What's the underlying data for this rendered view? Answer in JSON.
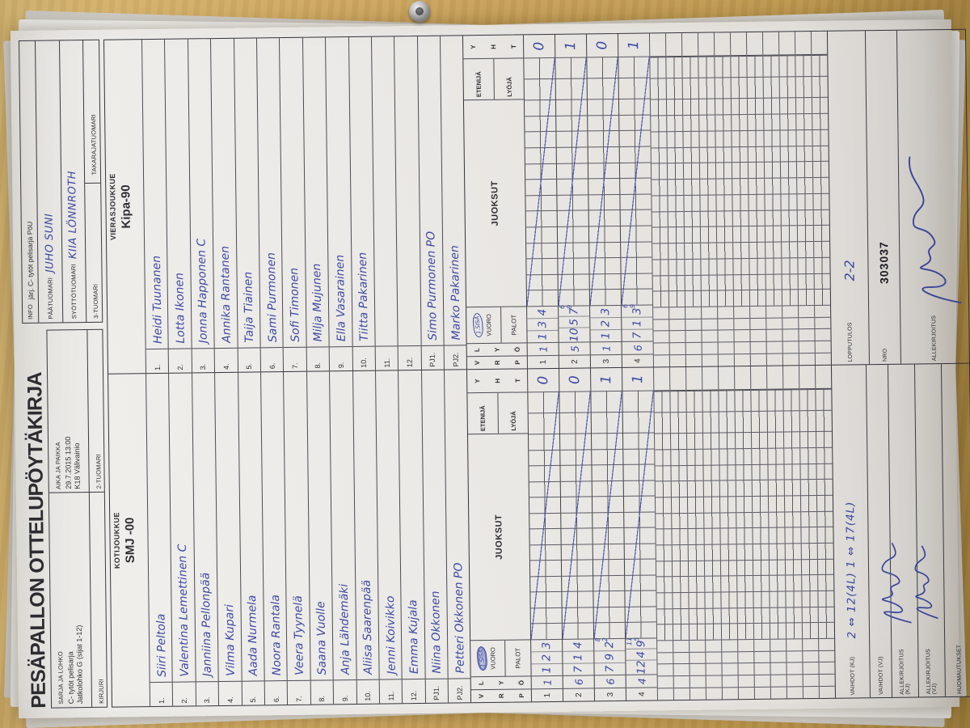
{
  "photo": {
    "wood_color": "#c09a52",
    "paper_color": "#ebe9e5",
    "ink_color": "#3c4aa5"
  },
  "header": {
    "title": "PESÄPALLON OTTELUPÖYTÄKIRJA",
    "sarja_label": "SARJA JA LOHKO",
    "sarja_line1": "C- tytöt pelisarja",
    "sarja_line2": "Jatkolohko  G (sijat 1-12)",
    "aika_label": "AIKA JA PAIKKA",
    "aika_line1": "29.7.2015 13:00",
    "aika_line2": "K18 Välivainio",
    "kirjuri_label": "KIRJURI",
    "tuomari2_label": "2-TUOMARI",
    "info_label": "INFO",
    "info_text": "järj. C- tytöt pelisarja  PöU",
    "paatuomari_label": "PÄÄTUOMARI",
    "paatuomari_value": "JUHO SUNI",
    "syottotuomari_label": "SYÖTTÖTUOMARI",
    "syottotuomari_value": "KIIA LÖNNROTH",
    "tuomari3_label": "3-TUOMARI",
    "takaraja_label": "TAKARAJATUOMARI"
  },
  "scoring_header": {
    "c1": [
      "V",
      "R",
      "P"
    ],
    "c2": [
      "L",
      "Y",
      "Ö"
    ],
    "sisa": "1.SISÄ",
    "vuoro": "VUORO",
    "palot": "PALOT",
    "juoksut": "JUOKSUT",
    "etenija": "ETENIJÄ",
    "lyoja": "LYÖJÄ",
    "yht": [
      "Y",
      "H",
      "T"
    ]
  },
  "grid": {
    "cols": 13,
    "wide_cols": 2,
    "empty_rows": 11
  },
  "home": {
    "panel_label": "KOTIJOUKKUE",
    "team_name": "SMJ -00",
    "players": [
      {
        "num": "1.",
        "name": "Siiri  Peltola"
      },
      {
        "num": "2.",
        "name": "Valentina  Lemettinen   C"
      },
      {
        "num": "3.",
        "name": "Janniina  Pellonpää"
      },
      {
        "num": "4.",
        "name": "Vilma  Kupari"
      },
      {
        "num": "5.",
        "name": "Aada  Nurmela"
      },
      {
        "num": "6.",
        "name": "Noora  Rantala"
      },
      {
        "num": "7.",
        "name": "Veera  Tyynelä"
      },
      {
        "num": "8.",
        "name": "Saana  Vuolle"
      },
      {
        "num": "9.",
        "name": "Anja  Lähdemäki"
      },
      {
        "num": "10.",
        "name": "Aliisa  Saarenpää"
      },
      {
        "num": "11.",
        "name": "Jenni  Koivikko"
      },
      {
        "num": "12.",
        "name": "Emma  Kujala"
      },
      {
        "num": "PJ1.",
        "name": "Niina Okkonen"
      },
      {
        "num": "PJ2.",
        "name": "Petteri  Okkonen   PO"
      }
    ],
    "scoring_rows": [
      {
        "v": "1",
        "lyo": "1",
        "palot": [
          "1",
          "2",
          "3"
        ],
        "yht": "0",
        "slash": true
      },
      {
        "v": "2",
        "lyo": "6",
        "palot": [
          "7",
          "1",
          "4"
        ],
        "yht": "0",
        "slash": true
      },
      {
        "v": "3",
        "lyo": "6",
        "palot": [
          "7",
          "9",
          "2"
        ],
        "extra": [
          "8",
          "2"
        ],
        "yht": "1",
        "slash": true
      },
      {
        "v": "4",
        "lyo": "4",
        "palot": [
          "12",
          "4",
          "9"
        ],
        "extra": [
          "11",
          "5"
        ],
        "yht": "1",
        "slash": true
      }
    ],
    "vaihdot_kj_label": "VAIHDOT (KJ)",
    "vaihdot_kj_value": "2 ⇔ 12(4L)   1 ⇔ 17(4L)",
    "vaihdot_vj_label": "VAIHDOT (VJ)",
    "allekirjoitus_kj_label": "ALLEKIRJOITUS (KJ)",
    "allekirjoitus_vj_label": "ALLEKIRJOITUS (VJ)",
    "huomautukset_label": "HUOMAUTUKSET"
  },
  "away": {
    "panel_label": "VIERASJOUKKUE",
    "team_name": "Kipa-90",
    "players": [
      {
        "num": "1.",
        "name": "Heidi  Tuunanen"
      },
      {
        "num": "2.",
        "name": "Lotta  Ikonen"
      },
      {
        "num": "3.",
        "name": "Jonna  Happonen   C"
      },
      {
        "num": "4.",
        "name": "Annika  Rantanen"
      },
      {
        "num": "5.",
        "name": "Taija  Tiainen"
      },
      {
        "num": "6.",
        "name": "Sami  Purmonen"
      },
      {
        "num": "7.",
        "name": "Sofi  Timonen"
      },
      {
        "num": "8.",
        "name": "Milja  Mujunen"
      },
      {
        "num": "9.",
        "name": "Ella  Vasarainen"
      },
      {
        "num": "10.",
        "name": "Tiitta  Pakarinen"
      },
      {
        "num": "11.",
        "name": ""
      },
      {
        "num": "12.",
        "name": ""
      },
      {
        "num": "PJ1.",
        "name": "Simo  Purmonen   PO"
      },
      {
        "num": "PJ2.",
        "name": "Marko  Pakarinen"
      }
    ],
    "scoring_rows": [
      {
        "v": "1",
        "lyo": "1",
        "palot": [
          "1",
          "3",
          "4"
        ],
        "yht": "0",
        "slash": true
      },
      {
        "v": "2",
        "lyo": "5",
        "palot": [
          "10",
          "5",
          "7"
        ],
        "extra": [
          "6",
          "9"
        ],
        "yht": "1",
        "slash": true
      },
      {
        "v": "3",
        "lyo": "1",
        "palot": [
          "1",
          "2",
          "3"
        ],
        "yht": "0",
        "slash": true
      },
      {
        "v": "4",
        "lyo": "6",
        "palot": [
          "7",
          "1",
          "3"
        ],
        "extra": [
          "6",
          "9"
        ],
        "yht": "1",
        "slash": true
      }
    ],
    "lopputulos_label": "LOPPUTULOS",
    "lopputulos_value": "2-2",
    "nro_label": "NRO",
    "nro_value": "303037",
    "allekirjoitus_label": "ALLEKIRJOITUS"
  }
}
